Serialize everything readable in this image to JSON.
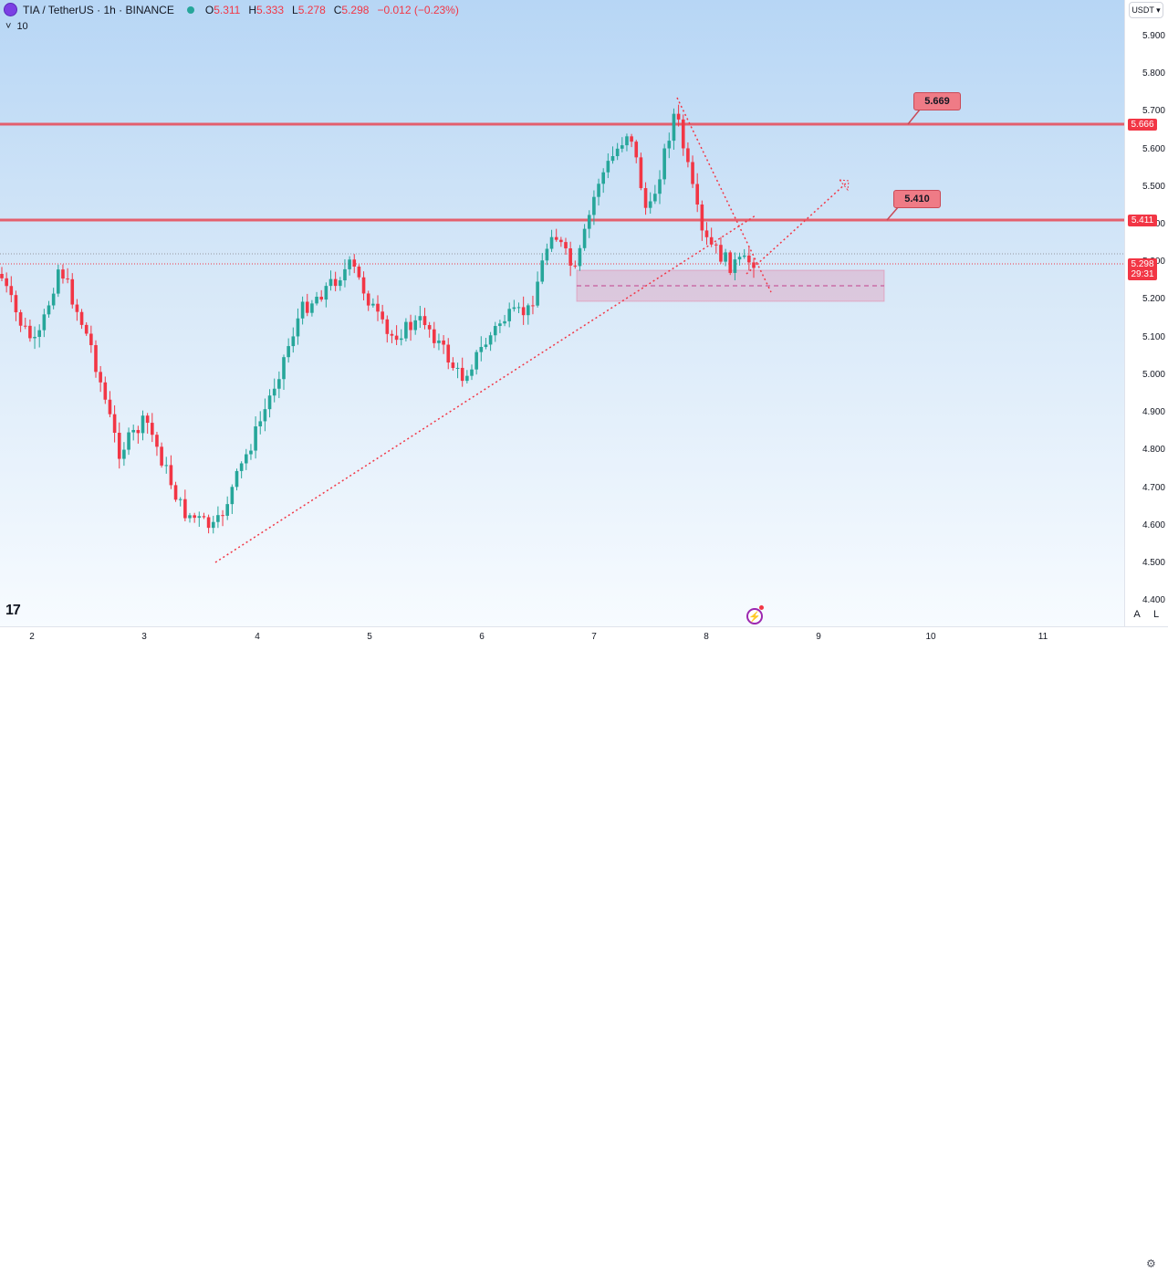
{
  "legend": {
    "symbol": "TIA / TetherUS · 1h · BINANCE",
    "o_label": "O",
    "o": "5.311",
    "h_label": "H",
    "h": "5.333",
    "l_label": "L",
    "l": "5.278",
    "c_label": "C",
    "c": "5.298",
    "change": "−0.012 (−0.23%)"
  },
  "indicator": {
    "chevron": "˅",
    "value": "10"
  },
  "currency": "USDT ▾",
  "price_ticks": [
    "5.900",
    "5.800",
    "5.700",
    "5.600",
    "5.500",
    "5.400",
    "5.300",
    "5.200",
    "5.100",
    "5.000",
    "4.900",
    "4.800",
    "4.700",
    "4.600",
    "4.500",
    "4.400"
  ],
  "time_ticks": [
    "2",
    "3",
    "4",
    "5",
    "6",
    "7",
    "8",
    "9",
    "10",
    "11"
  ],
  "price_tags": {
    "resistance_high": "5.666",
    "resistance_mid": "5.411",
    "last_price": "5.298",
    "countdown": "29:31"
  },
  "callouts": {
    "high": "5.669",
    "mid": "5.410"
  },
  "logo": "17",
  "scale_buttons": {
    "auto": "A",
    "log": "L"
  },
  "colors": {
    "up": "#26a69a",
    "down": "#f23645",
    "line": "#e84855",
    "zone": "rgba(231,84,128,0.22)"
  }
}
